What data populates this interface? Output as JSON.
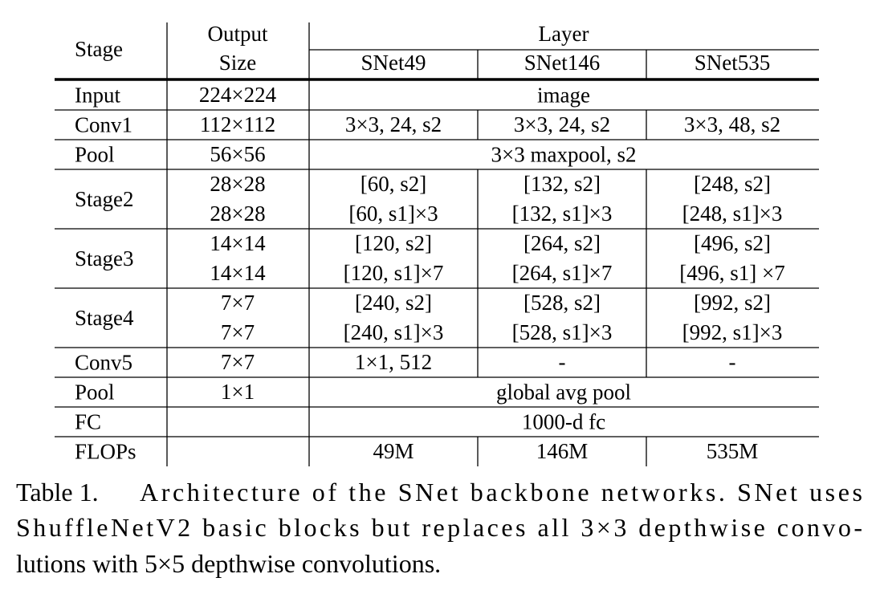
{
  "table": {
    "header": {
      "stage": "Stage",
      "output_size": [
        "Output",
        "Size"
      ],
      "layer": "Layer",
      "models": [
        "SNet49",
        "SNet146",
        "SNet535"
      ]
    },
    "rows": [
      {
        "stage": "Input",
        "output_size": [
          "224×224"
        ],
        "layer": "image"
      },
      {
        "stage": "Conv1",
        "output_size": [
          "112×112"
        ],
        "cells": [
          [
            "3×3, 24, s2"
          ],
          [
            "3×3, 24, s2"
          ],
          [
            "3×3, 48, s2"
          ]
        ]
      },
      {
        "stage": "Pool",
        "output_size": [
          "56×56"
        ],
        "layer": "3×3 maxpool, s2"
      },
      {
        "stage": "Stage2",
        "output_size": [
          "28×28",
          "28×28"
        ],
        "cells": [
          [
            "[60, s2]",
            "[60, s1]×3"
          ],
          [
            "[132, s2]",
            "[132, s1]×3"
          ],
          [
            "[248, s2]",
            "[248, s1]×3"
          ]
        ]
      },
      {
        "stage": "Stage3",
        "output_size": [
          "14×14",
          "14×14"
        ],
        "cells": [
          [
            "[120, s2]",
            "[120, s1]×7"
          ],
          [
            "[264, s2]",
            "[264, s1]×7"
          ],
          [
            "[496, s2]",
            "[496, s1] ×7"
          ]
        ]
      },
      {
        "stage": "Stage4",
        "output_size": [
          "7×7",
          "7×7"
        ],
        "cells": [
          [
            "[240, s2]",
            "[240, s1]×3"
          ],
          [
            "[528, s2]",
            "[528, s1]×3"
          ],
          [
            "[992, s2]",
            "[992, s1]×3"
          ]
        ]
      },
      {
        "stage": "Conv5",
        "output_size": [
          "7×7"
        ],
        "cells": [
          [
            "1×1, 512"
          ],
          [
            "-"
          ],
          [
            "-"
          ]
        ]
      },
      {
        "stage": "Pool",
        "output_size": [
          "1×1"
        ],
        "layer": "global avg pool"
      },
      {
        "stage": "FC",
        "layer": "1000-d fc"
      },
      {
        "stage": "FLOPs",
        "cells": [
          [
            "49M"
          ],
          [
            "146M"
          ],
          [
            "535M"
          ]
        ]
      }
    ]
  },
  "caption": {
    "label": "Table 1.",
    "lines": [
      "Architecture of the SNet backbone networks. SNet uses",
      "ShuffleNetV2 basic blocks but replaces all 3×3 depthwise convo-",
      "lutions with 5×5 depthwise convolutions."
    ]
  }
}
